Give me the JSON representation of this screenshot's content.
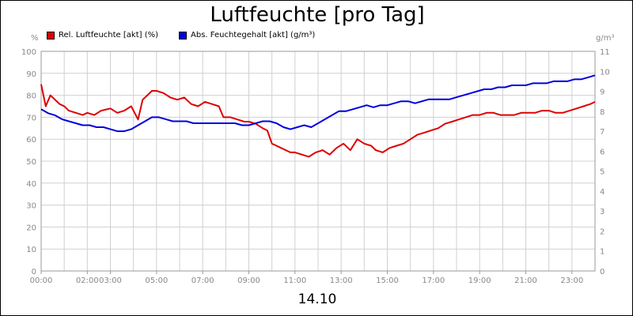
{
  "chart_data": {
    "type": "line",
    "title": "Luftfeuchte [pro Tag]",
    "date_label": "14.10",
    "y_left": {
      "unit": "%",
      "min": 0,
      "max": 100,
      "ticks": [
        0,
        10,
        20,
        30,
        40,
        50,
        60,
        70,
        80,
        90,
        100
      ]
    },
    "y_right": {
      "unit": "g/m³",
      "min": 0,
      "max": 11,
      "ticks": [
        0,
        1,
        2,
        3,
        4,
        5,
        6,
        7,
        8,
        9,
        10,
        11
      ]
    },
    "x_range_hours": [
      0,
      24
    ],
    "x_ticks": [
      "00:00",
      "02:00",
      "03:00",
      "05:00",
      "07:00",
      "09:00",
      "11:00",
      "13:00",
      "15:00",
      "17:00",
      "19:00",
      "21:00",
      "23:00"
    ],
    "x_tick_hours": [
      0,
      2,
      3,
      5,
      7,
      9,
      11,
      13,
      15,
      17,
      19,
      21,
      23
    ],
    "grid": true,
    "legend_position": "top-left",
    "series": [
      {
        "name": "Rel. Luftfeuchte [akt] (%)",
        "color": "#dd0000",
        "axis": "left",
        "x": [
          0,
          0.2,
          0.4,
          0.6,
          0.8,
          1.0,
          1.2,
          1.5,
          1.8,
          2.0,
          2.3,
          2.6,
          3.0,
          3.3,
          3.6,
          3.9,
          4.2,
          4.4,
          4.6,
          4.8,
          5.0,
          5.3,
          5.6,
          5.9,
          6.2,
          6.5,
          6.8,
          7.1,
          7.4,
          7.7,
          7.9,
          8.2,
          8.5,
          8.8,
          9.0,
          9.3,
          9.6,
          9.8,
          10.0,
          10.2,
          10.4,
          10.6,
          10.8,
          11.0,
          11.3,
          11.6,
          11.9,
          12.2,
          12.5,
          12.8,
          13.1,
          13.4,
          13.7,
          14.0,
          14.3,
          14.5,
          14.8,
          15.1,
          15.4,
          15.7,
          16.0,
          16.3,
          16.6,
          16.9,
          17.2,
          17.5,
          17.8,
          18.1,
          18.4,
          18.7,
          19.0,
          19.3,
          19.6,
          19.9,
          20.2,
          20.5,
          20.8,
          21.1,
          21.4,
          21.7,
          22.0,
          22.3,
          22.6,
          22.9,
          23.2,
          23.5,
          23.8,
          24.0
        ],
        "y": [
          85,
          75,
          80,
          78,
          76,
          75,
          73,
          72,
          71,
          72,
          71,
          73,
          74,
          72,
          73,
          75,
          69,
          78,
          80,
          82,
          82,
          81,
          79,
          78,
          79,
          76,
          75,
          77,
          76,
          75,
          70,
          70,
          69,
          68,
          68,
          67,
          65,
          64,
          58,
          57,
          56,
          55,
          54,
          54,
          53,
          52,
          54,
          55,
          53,
          56,
          58,
          55,
          60,
          58,
          57,
          55,
          54,
          56,
          57,
          58,
          60,
          62,
          63,
          64,
          65,
          67,
          68,
          69,
          70,
          71,
          71,
          72,
          72,
          71,
          71,
          71,
          72,
          72,
          72,
          73,
          73,
          72,
          72,
          73,
          74,
          75,
          76,
          77
        ]
      },
      {
        "name": "Abs. Feuchtegehalt [akt] (g/m³)",
        "color": "#0000dd",
        "axis": "right",
        "x": [
          0,
          0.3,
          0.6,
          0.9,
          1.2,
          1.5,
          1.8,
          2.1,
          2.4,
          2.7,
          3.0,
          3.3,
          3.6,
          3.9,
          4.2,
          4.5,
          4.8,
          5.1,
          5.4,
          5.7,
          6.0,
          6.3,
          6.6,
          6.9,
          7.2,
          7.5,
          7.8,
          8.1,
          8.4,
          8.7,
          9.0,
          9.3,
          9.6,
          9.9,
          10.2,
          10.5,
          10.8,
          11.1,
          11.4,
          11.7,
          12.0,
          12.3,
          12.6,
          12.9,
          13.2,
          13.5,
          13.8,
          14.1,
          14.4,
          14.7,
          15.0,
          15.3,
          15.6,
          15.9,
          16.2,
          16.5,
          16.8,
          17.1,
          17.4,
          17.7,
          18.0,
          18.3,
          18.6,
          18.9,
          19.2,
          19.5,
          19.8,
          20.1,
          20.4,
          20.7,
          21.0,
          21.3,
          21.6,
          21.9,
          22.2,
          22.5,
          22.8,
          23.1,
          23.4,
          23.7,
          24.0
        ],
        "y": [
          8.1,
          7.9,
          7.8,
          7.6,
          7.5,
          7.4,
          7.3,
          7.3,
          7.2,
          7.2,
          7.1,
          7.0,
          7.0,
          7.1,
          7.3,
          7.5,
          7.7,
          7.7,
          7.6,
          7.5,
          7.5,
          7.5,
          7.4,
          7.4,
          7.4,
          7.4,
          7.4,
          7.4,
          7.4,
          7.3,
          7.3,
          7.4,
          7.5,
          7.5,
          7.4,
          7.2,
          7.1,
          7.2,
          7.3,
          7.2,
          7.4,
          7.6,
          7.8,
          8.0,
          8.0,
          8.1,
          8.2,
          8.3,
          8.2,
          8.3,
          8.3,
          8.4,
          8.5,
          8.5,
          8.4,
          8.5,
          8.6,
          8.6,
          8.6,
          8.6,
          8.7,
          8.8,
          8.9,
          9.0,
          9.1,
          9.1,
          9.2,
          9.2,
          9.3,
          9.3,
          9.3,
          9.4,
          9.4,
          9.4,
          9.5,
          9.5,
          9.5,
          9.6,
          9.6,
          9.7,
          9.8
        ]
      }
    ]
  }
}
